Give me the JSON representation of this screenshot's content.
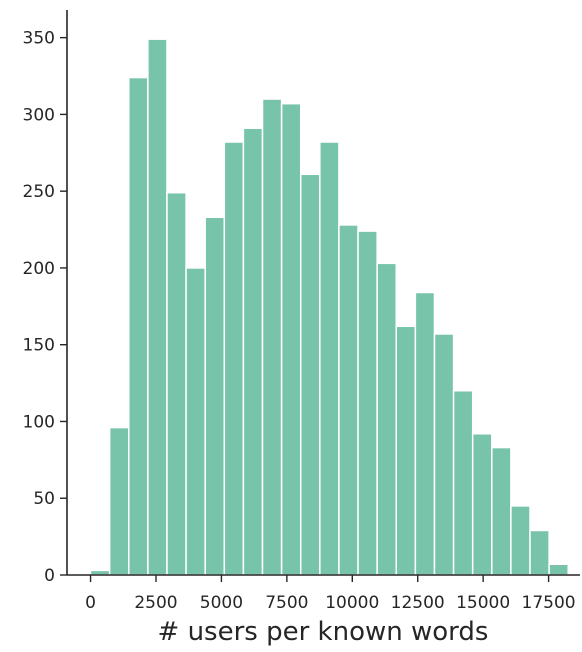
{
  "chart_data": {
    "type": "bar",
    "subtype": "histogram",
    "title": "",
    "xlabel": "# users per known words",
    "ylabel": "",
    "bar_color": "#77c4ab",
    "axis_color": "#262626",
    "grid": false,
    "xlim": [
      -900,
      18700
    ],
    "ylim": [
      0,
      368
    ],
    "xticks": [
      0,
      2500,
      5000,
      7500,
      10000,
      12500,
      15000,
      17500
    ],
    "xtick_labels": [
      "0",
      "2500",
      "5000",
      "7500",
      "10000",
      "12500",
      "15000",
      "17500"
    ],
    "yticks": [
      0,
      50,
      100,
      150,
      200,
      250,
      300,
      350
    ],
    "ytick_labels": [
      "0",
      "50",
      "100",
      "150",
      "200",
      "250",
      "300",
      "350"
    ],
    "bin_width": 730,
    "bin_edges_start": 0,
    "counts": [
      3,
      96,
      324,
      349,
      249,
      200,
      233,
      282,
      291,
      310,
      307,
      261,
      282,
      228,
      224,
      203,
      162,
      184,
      157,
      120,
      92,
      83,
      45,
      29,
      7
    ]
  }
}
